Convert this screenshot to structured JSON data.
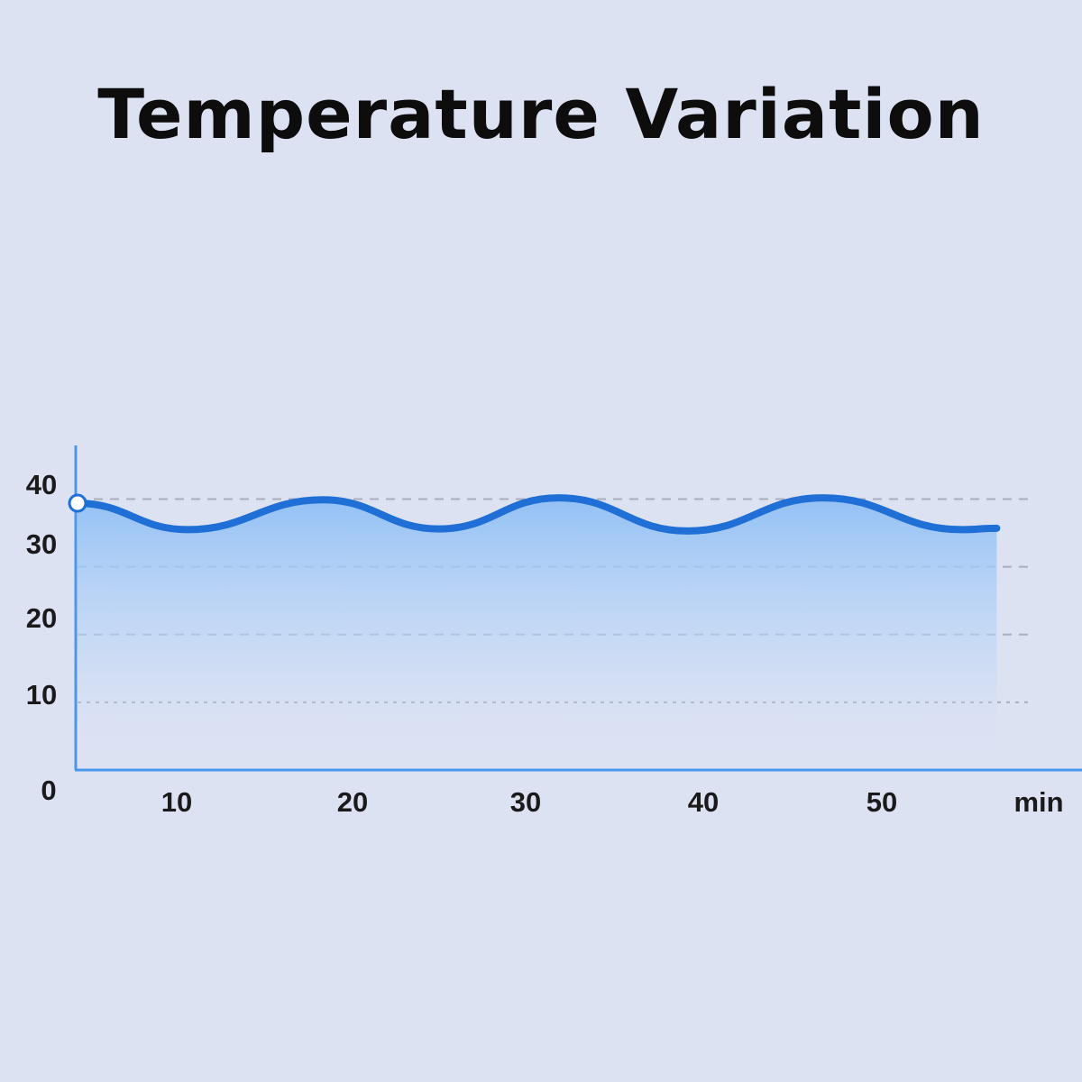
{
  "title": "Temperature Variation",
  "colors": {
    "background": "#dde2f3",
    "line": "#1f6fd6",
    "fill_top": "#8fbff5",
    "grid": "#a9afbd",
    "axis": "#4a95ee"
  },
  "chart_data": {
    "type": "area",
    "title": "Temperature Variation",
    "xlabel": "",
    "ylabel": "",
    "x_unit_label": "min",
    "origin_label": "0",
    "xlim": [
      0,
      60
    ],
    "ylim": [
      0,
      45
    ],
    "x_ticks": [
      10,
      20,
      30,
      40,
      50
    ],
    "x_tick_labels": [
      "10",
      "20",
      "30",
      "40",
      "50"
    ],
    "y_ticks": [
      10,
      20,
      30,
      40
    ],
    "y_tick_labels": [
      "10",
      "20",
      "30",
      "40"
    ],
    "grid": "horizontal dashed",
    "series": [
      {
        "x": [
          0,
          6.9,
          15.4,
          22.7,
          30.2,
          38.3,
          46.8,
          55.5,
          57.7
        ],
        "values": [
          39.4,
          35.5,
          39.9,
          35.6,
          40.2,
          35.3,
          40.2,
          35.5,
          35.7
        ]
      }
    ]
  }
}
